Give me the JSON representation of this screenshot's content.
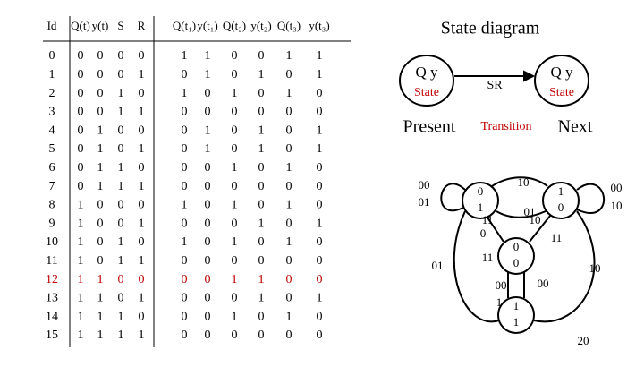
{
  "table": {
    "header": [
      "Id",
      "Q(t)",
      "y(t)",
      "S",
      "R",
      "Q(t₁)",
      "y(t₁)",
      "Q(t₂)",
      "y(t₂)",
      "Q(t₃)",
      "y(t₃)"
    ],
    "rows": [
      [
        "0",
        "0",
        "0",
        "0",
        "0",
        "1",
        "1",
        "0",
        "0",
        "1",
        "1"
      ],
      [
        "1",
        "0",
        "0",
        "0",
        "1",
        "0",
        "1",
        "0",
        "1",
        "0",
        "1"
      ],
      [
        "2",
        "0",
        "0",
        "1",
        "0",
        "1",
        "0",
        "1",
        "0",
        "1",
        "0"
      ],
      [
        "3",
        "0",
        "0",
        "1",
        "1",
        "0",
        "0",
        "0",
        "0",
        "0",
        "0"
      ],
      [
        "4",
        "0",
        "1",
        "0",
        "0",
        "0",
        "1",
        "0",
        "1",
        "0",
        "1"
      ],
      [
        "5",
        "0",
        "1",
        "0",
        "1",
        "0",
        "1",
        "0",
        "1",
        "0",
        "1"
      ],
      [
        "6",
        "0",
        "1",
        "1",
        "0",
        "0",
        "0",
        "1",
        "0",
        "1",
        "0"
      ],
      [
        "7",
        "0",
        "1",
        "1",
        "1",
        "0",
        "0",
        "0",
        "0",
        "0",
        "0"
      ],
      [
        "8",
        "1",
        "0",
        "0",
        "0",
        "1",
        "0",
        "1",
        "0",
        "1",
        "0"
      ],
      [
        "9",
        "1",
        "0",
        "0",
        "1",
        "0",
        "0",
        "0",
        "1",
        "0",
        "1"
      ],
      [
        "10",
        "1",
        "0",
        "1",
        "0",
        "1",
        "0",
        "1",
        "0",
        "1",
        "0"
      ],
      [
        "11",
        "1",
        "0",
        "1",
        "1",
        "0",
        "0",
        "0",
        "0",
        "0",
        "0"
      ],
      [
        "12",
        "1",
        "1",
        "0",
        "0",
        "0",
        "0",
        "1",
        "1",
        "0",
        "0"
      ],
      [
        "13",
        "1",
        "1",
        "0",
        "1",
        "0",
        "0",
        "0",
        "1",
        "0",
        "1"
      ],
      [
        "14",
        "1",
        "1",
        "1",
        "0",
        "0",
        "0",
        "1",
        "0",
        "1",
        "0"
      ],
      [
        "15",
        "1",
        "1",
        "1",
        "1",
        "0",
        "0",
        "0",
        "0",
        "0",
        "0"
      ]
    ],
    "highlight": {
      "row": 12,
      "color": "#c00000"
    }
  },
  "diagram": {
    "title": "State diagram",
    "legend": {
      "left": "Q y",
      "left_sub": "State",
      "arrow": "SR",
      "right": "Q y",
      "right_sub": "State"
    },
    "heading": {
      "present": "Present",
      "transition": "Transition",
      "next": "Next"
    },
    "nodes": [
      [
        "0",
        "1"
      ],
      [
        "1",
        "0"
      ],
      [
        "0",
        "0"
      ],
      [
        "1",
        "1"
      ]
    ],
    "edge_labels": [
      "00",
      "01",
      "10",
      "01",
      "11",
      "10",
      "0",
      "11",
      "01",
      "11",
      "00",
      "1",
      "00",
      "10",
      "00",
      "10"
    ]
  },
  "page": "20"
}
